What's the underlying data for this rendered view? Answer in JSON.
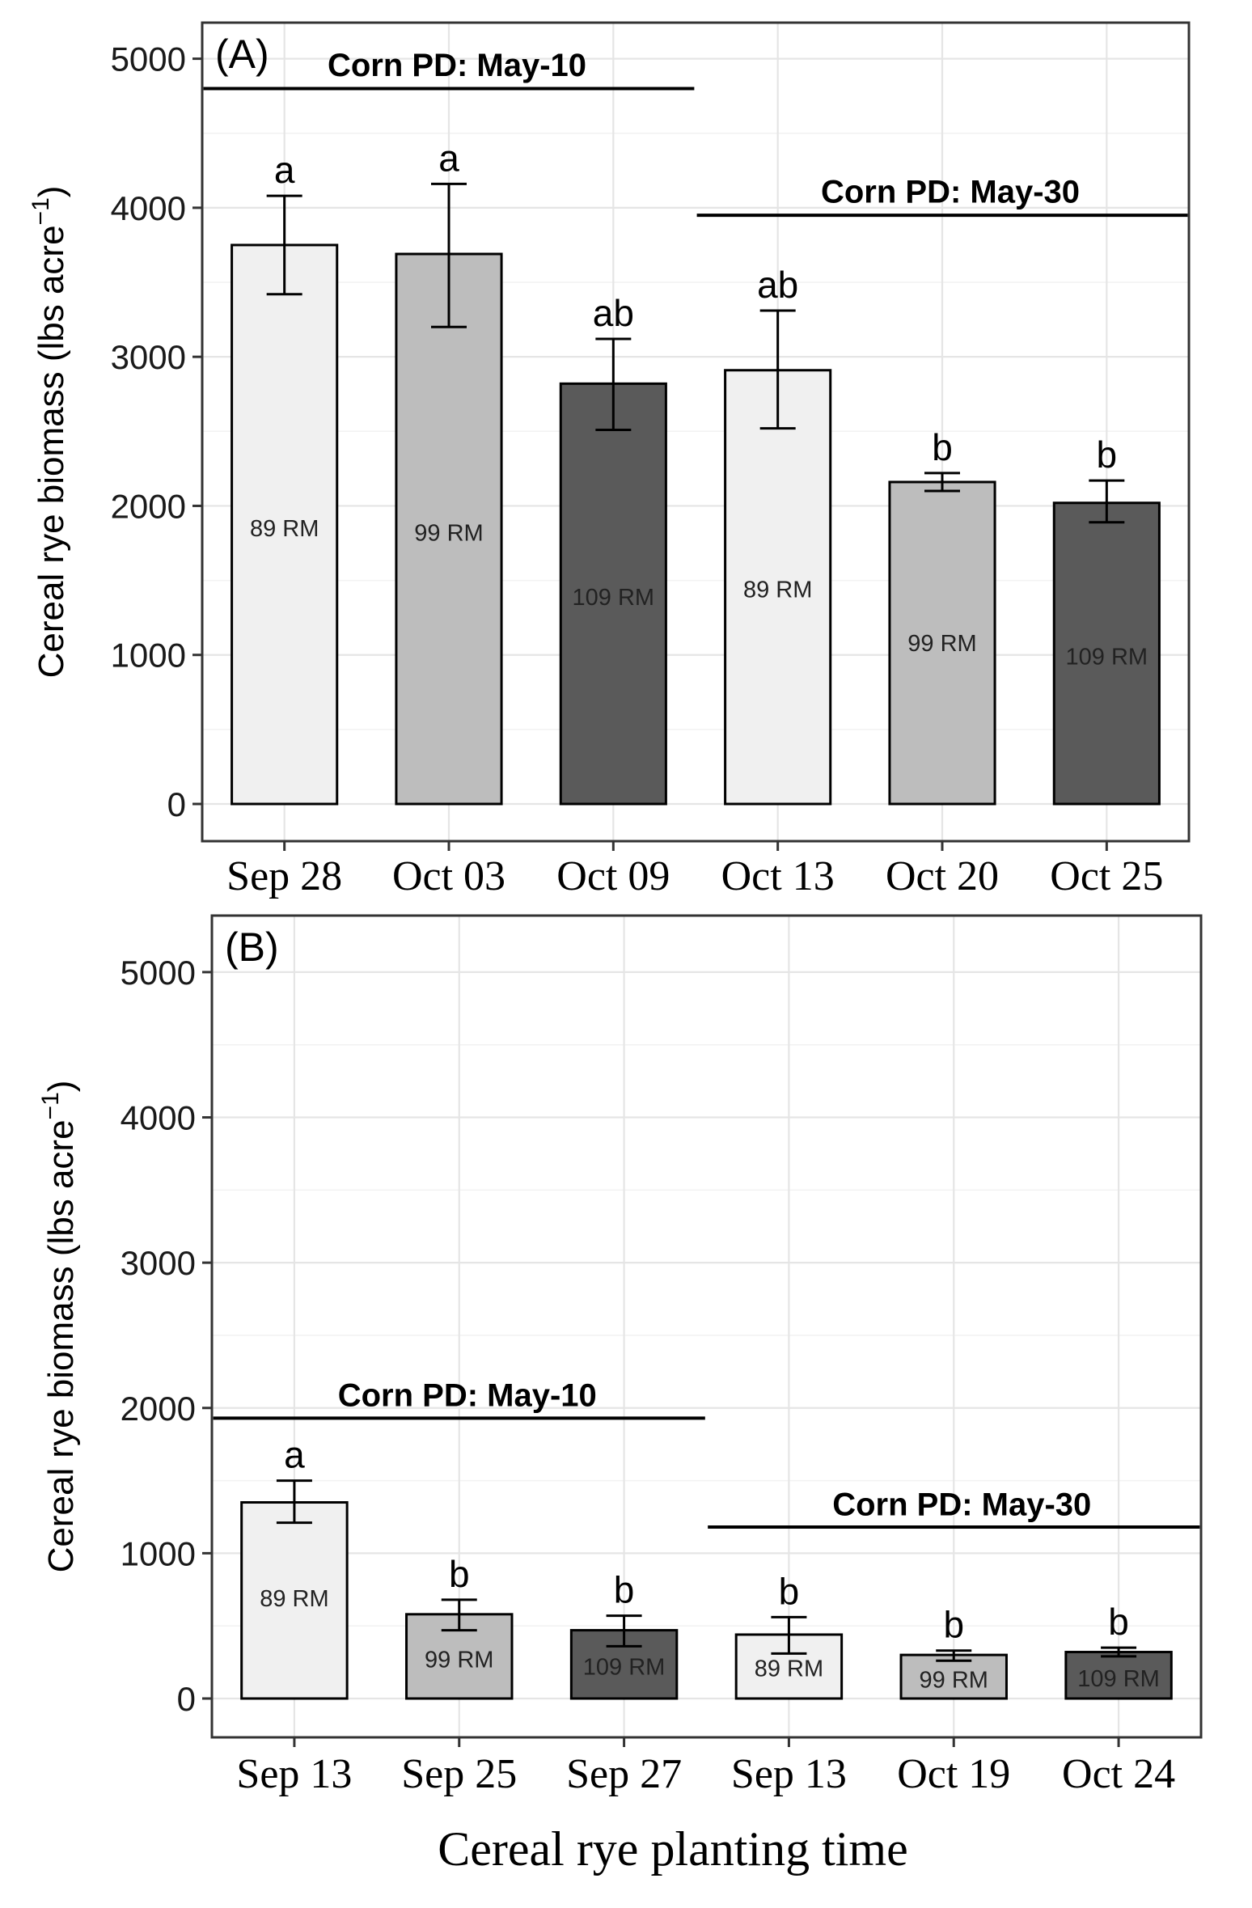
{
  "chart_data": [
    {
      "type": "bar",
      "panel_label": "(A)",
      "ylabel": "Cereal rye biomass (lbs acre",
      "ylabel_sup": "−1",
      "ylabel_close": ")",
      "ylim": [
        0,
        5000
      ],
      "yticks": [
        "0",
        "1000",
        "2000",
        "3000",
        "4000",
        "5000"
      ],
      "ytick_values": [
        0,
        1000,
        2000,
        3000,
        4000,
        5000
      ],
      "grid": true,
      "categories": [
        "Sep 28",
        "Oct 03",
        "Oct 09",
        "Oct 13",
        "Oct 20",
        "Oct 25"
      ],
      "values": [
        3750,
        3690,
        2820,
        2910,
        2160,
        2020
      ],
      "error_low": [
        3420,
        3200,
        2510,
        2520,
        2100,
        1890
      ],
      "error_high": [
        4080,
        4160,
        3120,
        3310,
        2220,
        2170
      ],
      "letters": [
        "a",
        "a",
        "ab",
        "ab",
        "b",
        "b"
      ],
      "bar_labels": [
        "89 RM",
        "99 RM",
        "109 RM",
        "89 RM",
        "99 RM",
        "109 RM"
      ],
      "bar_label_values": [
        1850,
        1820,
        1390,
        1440,
        1080,
        990
      ],
      "bar_colors": [
        "#f0f0f0",
        "#bdbdbd",
        "#5a5a5a",
        "#f0f0f0",
        "#bdbdbd",
        "#5a5a5a"
      ],
      "groups": [
        {
          "label": "Corn PD: May-10",
          "from": 0,
          "to": 2,
          "line_y": 4800,
          "label_y": 4960
        },
        {
          "label": "Corn PD: May-30",
          "from": 3,
          "to": 5,
          "line_y": 3950,
          "label_y": 4110
        }
      ]
    },
    {
      "type": "bar",
      "panel_label": "(B)",
      "ylabel": "Cereal rye biomass (lbs acre",
      "ylabel_sup": "−1",
      "ylabel_close": ")",
      "ylim": [
        0,
        5000
      ],
      "yticks": [
        "0",
        "1000",
        "2000",
        "3000",
        "4000",
        "5000"
      ],
      "ytick_values": [
        0,
        1000,
        2000,
        3000,
        4000,
        5000
      ],
      "grid": true,
      "categories": [
        "Sep 13",
        "Sep 25",
        "Sep 27",
        "Sep 13",
        "Oct 19",
        "Oct 24"
      ],
      "values": [
        1350,
        580,
        470,
        440,
        300,
        320
      ],
      "error_low": [
        1210,
        470,
        360,
        310,
        260,
        290
      ],
      "error_high": [
        1500,
        680,
        570,
        560,
        330,
        350
      ],
      "letters": [
        "a",
        "b",
        "b",
        "b",
        "b",
        "b"
      ],
      "bar_labels": [
        "89 RM",
        "99 RM",
        "109 RM",
        "89 RM",
        "99 RM",
        "109 RM"
      ],
      "bar_label_values": [
        690,
        270,
        220,
        210,
        130,
        140
      ],
      "bar_colors": [
        "#f0f0f0",
        "#bdbdbd",
        "#5a5a5a",
        "#f0f0f0",
        "#bdbdbd",
        "#5a5a5a"
      ],
      "xlabel": "Cereal rye planting time",
      "groups": [
        {
          "label": "Corn PD: May-10",
          "from": 0,
          "to": 2,
          "line_y": 1930,
          "label_y": 2090
        },
        {
          "label": "Corn PD: May-30",
          "from": 3,
          "to": 5,
          "line_y": 1180,
          "label_y": 1340
        }
      ]
    }
  ]
}
